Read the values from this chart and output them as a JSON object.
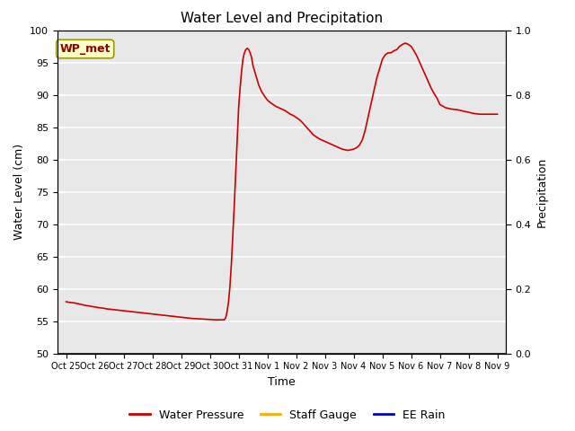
{
  "title": "Water Level and Precipitation",
  "xlabel": "Time",
  "ylabel_left": "Water Level (cm)",
  "ylabel_right": "Precipitation",
  "annotation_text": "WP_met",
  "annotation_box_facecolor": "#ffffcc",
  "annotation_box_edgecolor": "#999900",
  "annotation_text_color": "#8b0000",
  "ylim_left": [
    50,
    100
  ],
  "ylim_right": [
    0.0,
    1.0
  ],
  "yticks_left": [
    50,
    55,
    60,
    65,
    70,
    75,
    80,
    85,
    90,
    95,
    100
  ],
  "yticks_right": [
    0.0,
    0.2,
    0.4,
    0.6,
    0.8,
    1.0
  ],
  "xtick_labels": [
    "Oct 25",
    "Oct 26",
    "Oct 27",
    "Oct 28",
    "Oct 29",
    "Oct 30",
    "Oct 31",
    "Nov 1",
    "Nov 2",
    "Nov 3",
    "Nov 4",
    "Nov 5",
    "Nov 6",
    "Nov 7",
    "Nov 8",
    "Nov 9"
  ],
  "background_color": "#e8e8e8",
  "grid_color": "#ffffff",
  "line_color_wp": "#cc0000",
  "line_color_sg": "#ffaa00",
  "line_color_rain": "#0000cc",
  "legend_labels": [
    "Water Pressure",
    "Staff Gauge",
    "EE Rain"
  ],
  "wp_x": [
    0.0,
    0.1,
    0.2,
    0.3,
    0.4,
    0.5,
    0.6,
    0.7,
    0.8,
    0.9,
    1.0,
    1.1,
    1.2,
    1.3,
    1.4,
    1.5,
    1.6,
    1.7,
    1.8,
    1.9,
    2.0,
    2.1,
    2.2,
    2.3,
    2.4,
    2.5,
    2.6,
    2.7,
    2.8,
    2.9,
    3.0,
    3.1,
    3.2,
    3.3,
    3.4,
    3.5,
    3.6,
    3.7,
    3.8,
    3.9,
    4.0,
    4.1,
    4.2,
    4.3,
    4.4,
    4.5,
    4.6,
    4.7,
    4.8,
    4.9,
    5.0,
    5.05,
    5.1,
    5.15,
    5.2,
    5.25,
    5.3,
    5.35,
    5.4,
    5.45,
    5.5,
    5.55,
    5.6,
    5.65,
    5.7,
    5.75,
    5.8,
    5.85,
    5.9,
    5.95,
    6.0,
    6.05,
    6.1,
    6.15,
    6.2,
    6.25,
    6.3,
    6.35,
    6.4,
    6.45,
    6.5,
    6.6,
    6.7,
    6.8,
    6.9,
    7.0,
    7.1,
    7.2,
    7.3,
    7.4,
    7.5,
    7.6,
    7.7,
    7.8,
    7.9,
    8.0,
    8.1,
    8.2,
    8.3,
    8.4,
    8.5,
    8.6,
    8.7,
    8.8,
    8.9,
    9.0,
    9.1,
    9.2,
    9.3,
    9.4,
    9.5,
    9.6,
    9.7,
    9.8,
    9.9,
    10.0,
    10.1,
    10.2,
    10.3,
    10.4,
    10.5,
    10.6,
    10.7,
    10.8,
    10.9,
    11.0,
    11.1,
    11.2,
    11.3,
    11.4,
    11.5,
    11.6,
    11.7,
    11.8,
    11.9,
    12.0,
    12.1,
    12.2,
    12.3,
    12.4,
    12.5,
    12.6,
    12.7,
    12.8,
    12.9,
    13.0,
    13.2,
    13.4,
    13.6,
    13.8,
    14.0,
    14.2,
    14.4,
    14.6,
    14.8,
    15.0
  ],
  "wp_y": [
    58.0,
    57.9,
    57.85,
    57.8,
    57.7,
    57.6,
    57.5,
    57.4,
    57.35,
    57.25,
    57.2,
    57.1,
    57.05,
    57.0,
    56.9,
    56.85,
    56.8,
    56.75,
    56.7,
    56.65,
    56.6,
    56.55,
    56.5,
    56.45,
    56.4,
    56.35,
    56.3,
    56.25,
    56.2,
    56.15,
    56.1,
    56.05,
    56.0,
    55.95,
    55.9,
    55.85,
    55.8,
    55.75,
    55.7,
    55.65,
    55.6,
    55.55,
    55.5,
    55.45,
    55.4,
    55.38,
    55.35,
    55.33,
    55.3,
    55.28,
    55.25,
    55.23,
    55.22,
    55.21,
    55.2,
    55.2,
    55.2,
    55.2,
    55.2,
    55.2,
    55.2,
    55.5,
    56.5,
    58.0,
    60.5,
    64.0,
    68.5,
    73.0,
    78.0,
    83.0,
    88.0,
    91.0,
    93.5,
    95.5,
    96.5,
    97.0,
    97.2,
    97.0,
    96.5,
    95.8,
    94.5,
    93.0,
    91.5,
    90.5,
    89.8,
    89.2,
    88.8,
    88.5,
    88.2,
    88.0,
    87.8,
    87.6,
    87.3,
    87.0,
    86.8,
    86.5,
    86.2,
    85.8,
    85.3,
    84.8,
    84.3,
    83.8,
    83.5,
    83.2,
    83.0,
    82.8,
    82.6,
    82.4,
    82.2,
    82.0,
    81.8,
    81.6,
    81.5,
    81.4,
    81.5,
    81.6,
    81.8,
    82.2,
    83.0,
    84.5,
    86.5,
    88.5,
    90.5,
    92.5,
    94.0,
    95.5,
    96.2,
    96.5,
    96.5,
    96.8,
    97.0,
    97.5,
    97.8,
    98.0,
    97.8,
    97.5,
    96.8,
    96.0,
    95.0,
    94.0,
    93.0,
    92.0,
    91.0,
    90.2,
    89.5,
    88.5,
    88.0,
    87.8,
    87.7,
    87.5,
    87.3,
    87.1,
    87.0,
    87.0,
    87.0,
    87.0
  ]
}
